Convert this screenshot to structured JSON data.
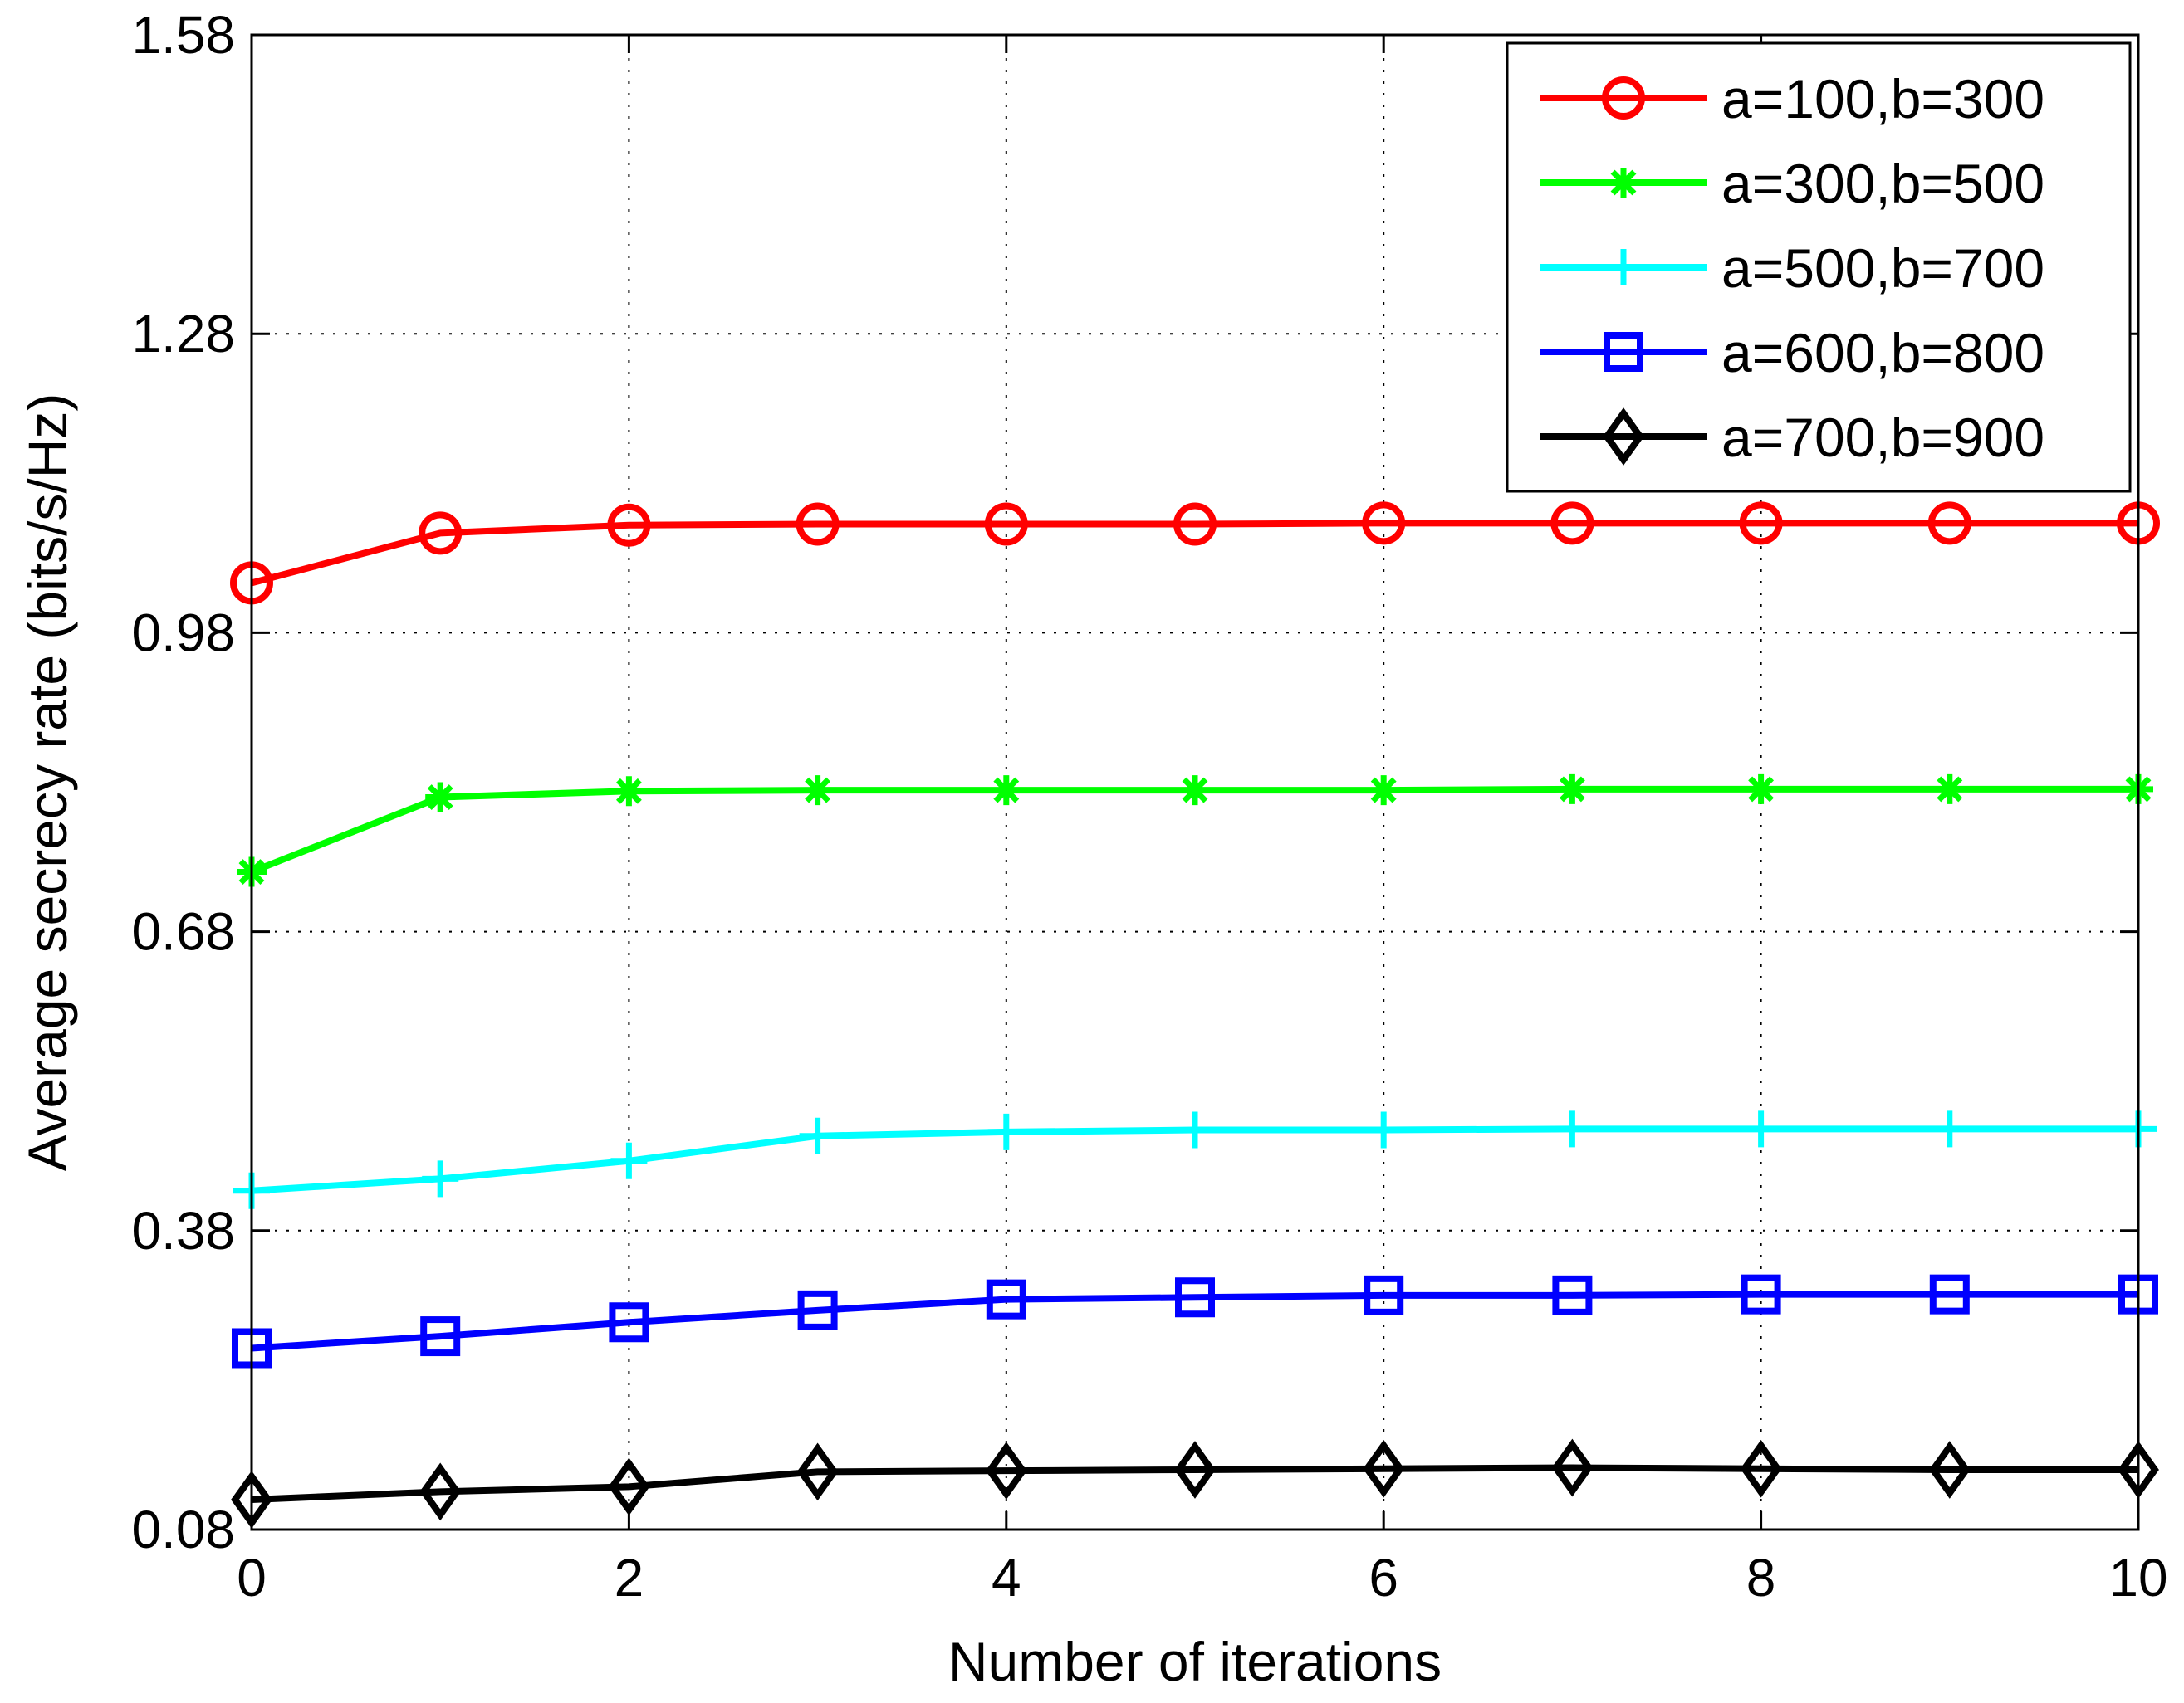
{
  "chart_data": {
    "type": "line",
    "xlabel": "Number of iterations",
    "ylabel": "Average secrecy rate (bits/s/Hz)",
    "xlim": [
      0,
      10
    ],
    "ylim": [
      0.08,
      1.58
    ],
    "xticks": [
      "0",
      "2",
      "4",
      "6",
      "8",
      "10"
    ],
    "yticks": [
      "0.08",
      "0.38",
      "0.68",
      "0.98",
      "1.28",
      "1.58"
    ],
    "grid": true,
    "legend_position": "top-right",
    "x": [
      0,
      1,
      2,
      3,
      4,
      5,
      6,
      7,
      8,
      9,
      10
    ],
    "series": [
      {
        "name": "a=100,b=300",
        "color": "#ff0000",
        "marker": "circle",
        "values": [
          1.03,
          1.08,
          1.088,
          1.089,
          1.089,
          1.089,
          1.09,
          1.09,
          1.09,
          1.09,
          1.09
        ]
      },
      {
        "name": "a=300,b=500",
        "color": "#00ff00",
        "marker": "asterisk",
        "values": [
          0.74,
          0.815,
          0.821,
          0.822,
          0.822,
          0.822,
          0.822,
          0.823,
          0.823,
          0.823,
          0.823
        ]
      },
      {
        "name": "a=500,b=700",
        "color": "#00ffff",
        "marker": "plus",
        "values": [
          0.42,
          0.432,
          0.45,
          0.475,
          0.479,
          0.481,
          0.481,
          0.482,
          0.482,
          0.482,
          0.482
        ]
      },
      {
        "name": "a=600,b=800",
        "color": "#0000ff",
        "marker": "square",
        "values": [
          0.262,
          0.274,
          0.288,
          0.3,
          0.311,
          0.313,
          0.315,
          0.315,
          0.316,
          0.316,
          0.316
        ]
      },
      {
        "name": "a=700,b=900",
        "color": "#000000",
        "marker": "diamond",
        "values": [
          0.11,
          0.118,
          0.123,
          0.138,
          0.139,
          0.14,
          0.141,
          0.142,
          0.141,
          0.14,
          0.14
        ]
      }
    ]
  }
}
